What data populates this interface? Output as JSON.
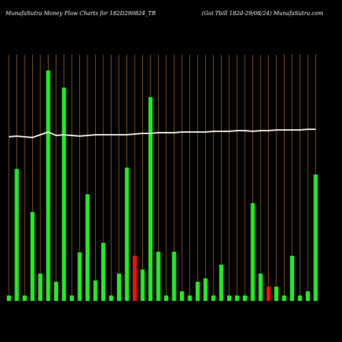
{
  "chart_data": {
    "type": "bar",
    "title": "MunafaSutra  Money Flow  Charts for 182D290824_TB",
    "subtitle": "(Goi   Tbill 182d-29/08/24) MunafaSutra.com",
    "categories": [
      null,
      null,
      null,
      null,
      null,
      null,
      null,
      null,
      null,
      null,
      null,
      null,
      null,
      null,
      null,
      null,
      null,
      null,
      null,
      null,
      null,
      null,
      null,
      null,
      null,
      null,
      null,
      null,
      null,
      null,
      null,
      null,
      null,
      null,
      null,
      null,
      null,
      null,
      null,
      null
    ],
    "values": [
      8,
      193,
      8,
      130,
      40,
      337,
      28,
      312,
      8,
      71,
      156,
      30,
      85,
      8,
      40,
      195,
      66,
      46,
      298,
      72,
      8,
      72,
      14,
      8,
      28,
      33,
      8,
      53,
      8,
      8,
      8,
      143,
      40,
      21,
      21,
      8,
      66,
      8,
      14,
      185
    ],
    "colors": [
      "#22ee22",
      "#22ee22",
      "#22ee22",
      "#22ee22",
      "#22ee22",
      "#22ee22",
      "#22ee22",
      "#22ee22",
      "#22ee22",
      "#22ee22",
      "#22ee22",
      "#22ee22",
      "#22ee22",
      "#22ee22",
      "#22ee22",
      "#22ee22",
      "#ee1111",
      "#22ee22",
      "#22ee22",
      "#22ee22",
      "#22ee22",
      "#22ee22",
      "#22ee22",
      "#22ee22",
      "#22ee22",
      "#22ee22",
      "#22ee22",
      "#22ee22",
      "#22ee22",
      "#22ee22",
      "#22ee22",
      "#22ee22",
      "#22ee22",
      "#ee1111",
      "#22ee22",
      "#22ee22",
      "#22ee22",
      "#22ee22",
      "#22ee22",
      "#22ee22"
    ],
    "line": {
      "color": "#ffffff",
      "values": [
        240,
        241,
        240,
        239,
        243,
        247,
        242,
        243,
        242,
        241,
        242,
        243,
        243,
        243,
        243,
        243,
        244,
        245,
        245,
        246,
        246,
        246,
        247,
        247,
        247,
        247,
        248,
        248,
        248,
        249,
        249,
        248,
        249,
        249,
        250,
        250,
        250,
        250,
        251,
        251
      ]
    },
    "ylim": [
      0,
      360
    ],
    "grid": true,
    "grid_color": "#8a5a1a"
  }
}
